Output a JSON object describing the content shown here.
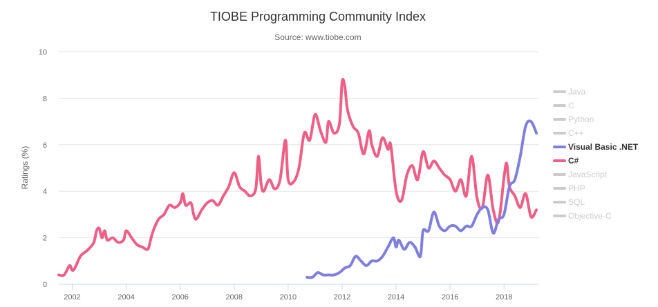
{
  "chart_data": {
    "type": "line",
    "title": "TIOBE Programming Community Index",
    "subtitle": "Source: www.tiobe.com",
    "xlabel": "",
    "ylabel": "Ratings (%)",
    "xlim": [
      2001.5,
      2019.3
    ],
    "ylim": [
      0,
      10
    ],
    "x_ticks": [
      2002,
      2004,
      2006,
      2008,
      2010,
      2012,
      2014,
      2016,
      2018
    ],
    "y_ticks": [
      0,
      2,
      4,
      6,
      8,
      10
    ],
    "grid": "horizontal",
    "legend_position": "right",
    "legend": [
      {
        "name": "Java",
        "color": "#cccccc",
        "visible": false
      },
      {
        "name": "C",
        "color": "#cccccc",
        "visible": false
      },
      {
        "name": "Python",
        "color": "#cccccc",
        "visible": false
      },
      {
        "name": "C++",
        "color": "#cccccc",
        "visible": false
      },
      {
        "name": "Visual Basic .NET",
        "color": "#7f7fdd",
        "visible": true
      },
      {
        "name": "C#",
        "color": "#ee5f86",
        "visible": true
      },
      {
        "name": "JavaScript",
        "color": "#cccccc",
        "visible": false
      },
      {
        "name": "PHP",
        "color": "#cccccc",
        "visible": false
      },
      {
        "name": "SQL",
        "color": "#cccccc",
        "visible": false
      },
      {
        "name": "Objective-C",
        "color": "#cccccc",
        "visible": false
      }
    ],
    "series": [
      {
        "name": "C#",
        "color": "#ee5f86",
        "x": [
          2001.5,
          2001.7,
          2001.9,
          2002.0,
          2002.1,
          2002.3,
          2002.5,
          2002.6,
          2002.8,
          2002.9,
          2003.0,
          2003.1,
          2003.2,
          2003.3,
          2003.5,
          2003.7,
          2003.9,
          2004.0,
          2004.2,
          2004.4,
          2004.6,
          2004.8,
          2004.9,
          2005.0,
          2005.2,
          2005.4,
          2005.6,
          2005.8,
          2006.0,
          2006.1,
          2006.2,
          2006.4,
          2006.5,
          2006.6,
          2006.8,
          2007.0,
          2007.2,
          2007.4,
          2007.6,
          2007.8,
          2008.0,
          2008.2,
          2008.4,
          2008.6,
          2008.8,
          2008.9,
          2009.0,
          2009.1,
          2009.3,
          2009.5,
          2009.7,
          2009.9,
          2010.0,
          2010.2,
          2010.4,
          2010.6,
          2010.8,
          2011.0,
          2011.2,
          2011.4,
          2011.5,
          2011.7,
          2011.9,
          2012.0,
          2012.1,
          2012.2,
          2012.4,
          2012.6,
          2012.8,
          2013.0,
          2013.1,
          2013.3,
          2013.5,
          2013.7,
          2013.8,
          2014.0,
          2014.2,
          2014.4,
          2014.6,
          2014.8,
          2015.0,
          2015.2,
          2015.4,
          2015.6,
          2015.8,
          2016.0,
          2016.2,
          2016.4,
          2016.6,
          2016.8,
          2017.0,
          2017.2,
          2017.4,
          2017.6,
          2017.8,
          2018.0,
          2018.1,
          2018.2,
          2018.4,
          2018.6,
          2018.8,
          2019.0,
          2019.2
        ],
        "values": [
          0.4,
          0.4,
          0.8,
          0.6,
          0.7,
          1.2,
          1.4,
          1.5,
          1.8,
          2.3,
          2.4,
          2.0,
          2.3,
          1.9,
          2.0,
          1.8,
          1.9,
          2.3,
          2.0,
          1.7,
          1.6,
          1.5,
          1.9,
          2.3,
          2.8,
          3.0,
          3.4,
          3.3,
          3.5,
          3.9,
          3.4,
          3.5,
          3.0,
          2.8,
          3.2,
          3.5,
          3.6,
          3.4,
          3.8,
          4.2,
          4.8,
          4.2,
          4.0,
          3.8,
          4.1,
          5.5,
          4.3,
          4.0,
          4.5,
          4.1,
          4.5,
          6.2,
          4.5,
          4.4,
          5.0,
          6.5,
          6.2,
          7.3,
          6.6,
          6.1,
          7.0,
          6.5,
          6.9,
          8.7,
          8.5,
          7.5,
          6.8,
          6.5,
          5.6,
          6.6,
          6.0,
          5.5,
          6.3,
          5.8,
          6.0,
          4.0,
          3.6,
          4.7,
          5.1,
          4.5,
          5.7,
          5.0,
          5.3,
          5.0,
          4.7,
          4.5,
          4.0,
          4.5,
          3.8,
          5.5,
          3.7,
          3.3,
          4.7,
          3.2,
          2.7,
          4.6,
          5.2,
          4.2,
          3.8,
          3.3,
          3.9,
          2.9,
          3.2
        ]
      },
      {
        "name": "Visual Basic .NET",
        "color": "#7f7fdd",
        "x": [
          2010.7,
          2010.9,
          2011.1,
          2011.3,
          2011.5,
          2011.7,
          2011.9,
          2012.1,
          2012.3,
          2012.5,
          2012.7,
          2012.9,
          2013.1,
          2013.3,
          2013.5,
          2013.7,
          2013.9,
          2014.0,
          2014.1,
          2014.3,
          2014.5,
          2014.7,
          2014.9,
          2015.0,
          2015.2,
          2015.4,
          2015.6,
          2015.8,
          2016.0,
          2016.2,
          2016.4,
          2016.6,
          2016.8,
          2017.0,
          2017.2,
          2017.4,
          2017.6,
          2017.8,
          2018.0,
          2018.2,
          2018.4,
          2018.6,
          2018.8,
          2019.0,
          2019.2
        ],
        "values": [
          0.3,
          0.3,
          0.5,
          0.4,
          0.4,
          0.4,
          0.5,
          0.7,
          0.8,
          1.2,
          1.0,
          0.8,
          1.0,
          1.0,
          1.2,
          1.6,
          2.0,
          1.6,
          1.9,
          1.5,
          1.8,
          1.6,
          1.2,
          2.3,
          2.3,
          3.1,
          2.5,
          2.3,
          2.5,
          2.5,
          2.3,
          2.5,
          2.5,
          3.0,
          3.3,
          3.2,
          2.2,
          2.8,
          3.0,
          4.2,
          4.5,
          5.5,
          6.8,
          7.0,
          6.5
        ]
      }
    ]
  }
}
